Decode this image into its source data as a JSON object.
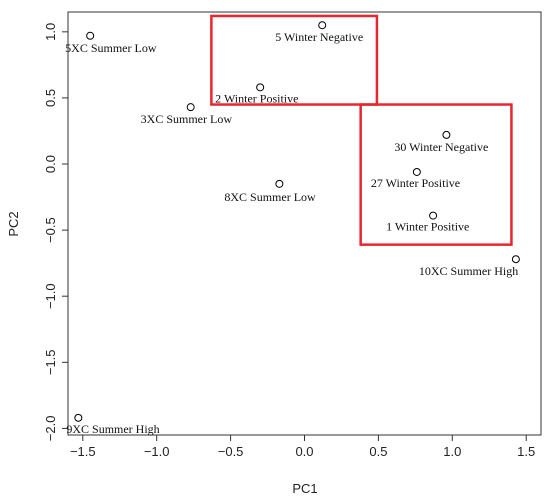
{
  "chart_data": {
    "type": "scatter",
    "title": "",
    "xlabel": "PC1",
    "ylabel": "PC2",
    "xlim": [
      -1.6,
      1.6
    ],
    "ylim": [
      -2.05,
      1.15
    ],
    "xticks": [
      -1.5,
      -1.0,
      -0.5,
      0.0,
      0.5,
      1.0,
      1.5
    ],
    "xtick_labels": [
      "−1.5",
      "−1.0",
      "−0.5",
      "0.0",
      "0.5",
      "1.0",
      "1.5"
    ],
    "yticks": [
      -2.0,
      -1.5,
      -1.0,
      -0.5,
      0.0,
      0.5,
      1.0
    ],
    "ytick_labels": [
      "−2.0",
      "−1.5",
      "−1.0",
      "−0.5",
      "0.0",
      "0.5",
      "1.0"
    ],
    "grid": false,
    "points": [
      {
        "label": "5XC Summer Low",
        "x": -1.45,
        "y": 0.97
      },
      {
        "label": "5 Winter Negative",
        "x": 0.12,
        "y": 1.05
      },
      {
        "label": "2 Winter Positive",
        "x": -0.3,
        "y": 0.58
      },
      {
        "label": "3XC Summer Low",
        "x": -0.77,
        "y": 0.43
      },
      {
        "label": "30 Winter Negative",
        "x": 0.96,
        "y": 0.22
      },
      {
        "label": "27 Winter Positive",
        "x": 0.76,
        "y": -0.06
      },
      {
        "label": "8XC Summer Low",
        "x": -0.17,
        "y": -0.15
      },
      {
        "label": "1 Winter Positive",
        "x": 0.87,
        "y": -0.39
      },
      {
        "label": "10XC Summer High",
        "x": 1.43,
        "y": -0.72
      },
      {
        "label": "9XC Summer High",
        "x": -1.53,
        "y": -1.92
      }
    ],
    "highlight_boxes": [
      {
        "x0": -0.63,
        "x1": 0.49,
        "y0": 0.45,
        "y1": 1.12
      },
      {
        "x0": 0.38,
        "x1": 1.4,
        "y0": -0.61,
        "y1": 0.45
      }
    ],
    "colors": {
      "points": "#000000",
      "highlight": "#e8262e",
      "axis": "#333333"
    }
  }
}
